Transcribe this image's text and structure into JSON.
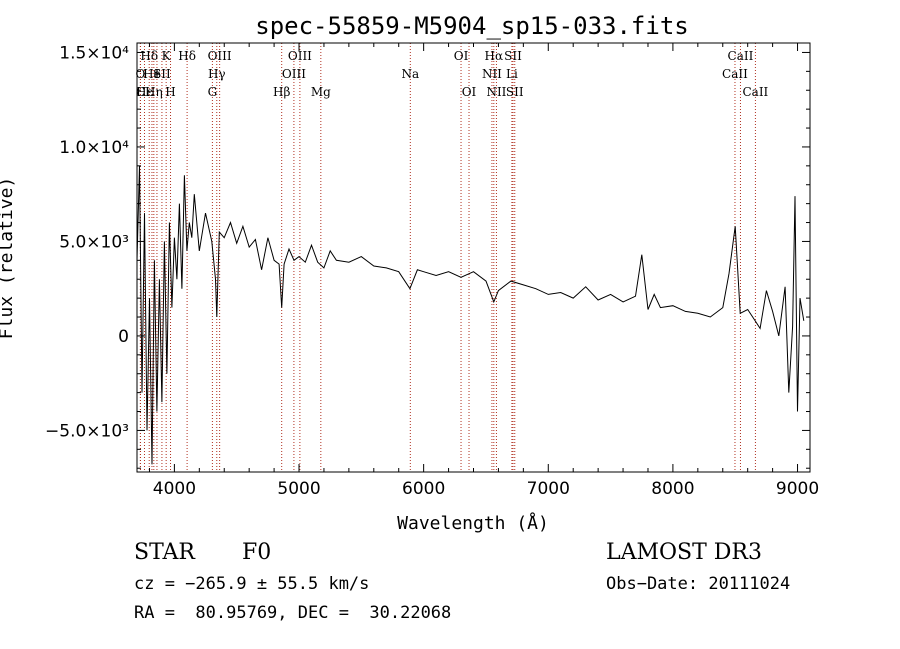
{
  "chart_data": {
    "type": "line",
    "title": "spec-55859-M5904_sp15-033.fits",
    "xlabel": "Wavelength (Å)",
    "ylabel": "Flux (relative)",
    "xlim": [
      3700,
      9100
    ],
    "ylim": [
      -7200,
      15500
    ],
    "xticks": [
      4000,
      5000,
      6000,
      7000,
      8000,
      9000
    ],
    "xtick_labels": [
      "4000",
      "5000",
      "6000",
      "7000",
      "8000",
      "9000"
    ],
    "yticks": [
      15000,
      10000,
      5000,
      0,
      -5000
    ],
    "ytick_labels": [
      "1.5×10⁴",
      "1.0×10⁴",
      "5.0×10³",
      "0",
      "−5.0×10³"
    ],
    "series": [
      {
        "name": "spectrum",
        "x": [
          3700,
          3720,
          3740,
          3760,
          3780,
          3800,
          3820,
          3840,
          3860,
          3880,
          3900,
          3920,
          3940,
          3960,
          3980,
          4000,
          4020,
          4040,
          4060,
          4080,
          4100,
          4120,
          4140,
          4160,
          4180,
          4200,
          4250,
          4300,
          4330,
          4340,
          4360,
          4400,
          4450,
          4500,
          4550,
          4600,
          4650,
          4700,
          4750,
          4800,
          4840,
          4861,
          4880,
          4920,
          4960,
          5000,
          5050,
          5100,
          5150,
          5200,
          5250,
          5300,
          5400,
          5500,
          5600,
          5700,
          5800,
          5890,
          5950,
          6000,
          6100,
          6200,
          6300,
          6400,
          6500,
          6563,
          6600,
          6700,
          6800,
          6900,
          7000,
          7100,
          7200,
          7300,
          7400,
          7500,
          7600,
          7700,
          7750,
          7800,
          7850,
          7900,
          8000,
          8100,
          8200,
          8300,
          8400,
          8450,
          8500,
          8540,
          8600,
          8650,
          8700,
          8750,
          8800,
          8850,
          8900,
          8930,
          8960,
          8980,
          9000,
          9020,
          9050
        ],
        "values": [
          4000,
          9000,
          -3000,
          6500,
          -5000,
          2000,
          -6800,
          4000,
          -4000,
          3000,
          -3500,
          5000,
          -2000,
          6000,
          1500,
          5200,
          3000,
          7000,
          2500,
          8500,
          4500,
          6000,
          5200,
          7500,
          6000,
          4500,
          6500,
          5000,
          3000,
          1000,
          5500,
          5200,
          6000,
          4900,
          5800,
          4700,
          5100,
          3500,
          5200,
          4000,
          3800,
          1500,
          3800,
          4600,
          4000,
          4200,
          3900,
          4800,
          3900,
          3600,
          4500,
          4000,
          3900,
          4200,
          3700,
          3600,
          3400,
          2500,
          3500,
          3400,
          3200,
          3400,
          3100,
          3400,
          2900,
          1800,
          2400,
          2900,
          2700,
          2500,
          2200,
          2300,
          2000,
          2600,
          1900,
          2200,
          1800,
          2100,
          4300,
          1400,
          2200,
          1500,
          1600,
          1300,
          1200,
          1000,
          1500,
          3300,
          5800,
          1200,
          1400,
          900,
          400,
          2400,
          1300,
          0,
          2600,
          -3000,
          500,
          7400,
          -4000,
          2000,
          800
        ]
      }
    ],
    "lines": [
      {
        "label": "O",
        "wl": 3727,
        "row": 2
      },
      {
        "label": "C",
        "wl": 3728,
        "row": 3
      },
      {
        "label": "Hε",
        "wl": 3760,
        "row": 3
      },
      {
        "label": "Hδ",
        "wl": 3798,
        "row": 1
      },
      {
        "label": "He",
        "wl": 3820,
        "row": 2
      },
      {
        "label": "Hη",
        "wl": 3835,
        "row": 3
      },
      {
        "label": "I",
        "wl": 3860,
        "row": 2
      },
      {
        "label": "K",
        "wl": 3934,
        "row": 1
      },
      {
        "label": "SII",
        "wl": 3900,
        "row": 2
      },
      {
        "label": "H",
        "wl": 3969,
        "row": 3
      },
      {
        "label": "Hδ",
        "wl": 4102,
        "row": 1
      },
      {
        "label": "OIII",
        "wl": 4363,
        "row": 1
      },
      {
        "label": "Hγ",
        "wl": 4340,
        "row": 2
      },
      {
        "label": "G",
        "wl": 4305,
        "row": 3
      },
      {
        "label": "OIII",
        "wl": 5007,
        "row": 1
      },
      {
        "label": "OIII",
        "wl": 4959,
        "row": 2
      },
      {
        "label": "Hβ",
        "wl": 4861,
        "row": 3
      },
      {
        "label": "Mg",
        "wl": 5175,
        "row": 3
      },
      {
        "label": "Na",
        "wl": 5893,
        "row": 2
      },
      {
        "label": "OI",
        "wl": 6300,
        "row": 1
      },
      {
        "label": "OI",
        "wl": 6364,
        "row": 3
      },
      {
        "label": "Hα",
        "wl": 6563,
        "row": 1
      },
      {
        "label": "SII",
        "wl": 6717,
        "row": 1
      },
      {
        "label": "NII",
        "wl": 6548,
        "row": 2
      },
      {
        "label": "Li",
        "wl": 6708,
        "row": 2
      },
      {
        "label": "NII",
        "wl": 6584,
        "row": 3
      },
      {
        "label": "SII",
        "wl": 6731,
        "row": 3
      },
      {
        "label": "CaII",
        "wl": 8542,
        "row": 1
      },
      {
        "label": "CaII",
        "wl": 8498,
        "row": 2
      },
      {
        "label": "CaII",
        "wl": 8662,
        "row": 3
      }
    ]
  },
  "info": {
    "object_class": "STAR",
    "subclass": "F0",
    "survey": "LAMOST DR3",
    "velocity": "cz = −265.9 ± 55.5 km/s",
    "obs_date": "Obs−Date: 20111024",
    "coords": "RA =  80.95769, DEC =  30.22068"
  },
  "colors": {
    "spectrum": "#000000",
    "line_marker": "#b03020"
  }
}
